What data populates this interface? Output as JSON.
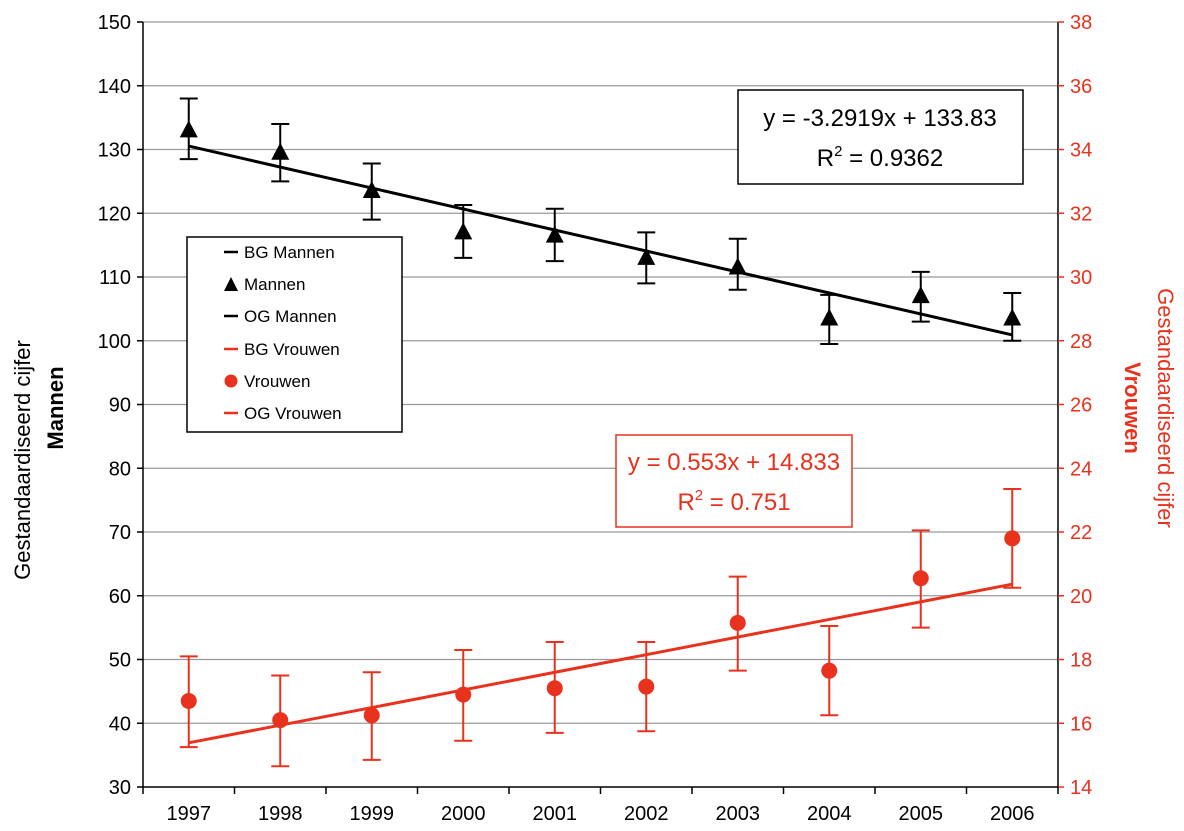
{
  "colors": {
    "men": "#000000",
    "women": "#e8321e",
    "grid": "#9a9a9a",
    "axis": "#000000"
  },
  "chart_data": {
    "type": "scatter",
    "x": [
      "1997",
      "1998",
      "1999",
      "2000",
      "2001",
      "2002",
      "2003",
      "2004",
      "2005",
      "2006"
    ],
    "left_axis": {
      "label_line1": "Gestandaardiseerd cijfer",
      "label_line2": "Mannen",
      "ylim": [
        30,
        150
      ],
      "ticks": [
        30,
        40,
        50,
        60,
        70,
        80,
        90,
        100,
        110,
        120,
        130,
        140,
        150
      ]
    },
    "right_axis": {
      "label_line1": "Gestandaardiseerd cijfer",
      "label_line2": "Vrouwen",
      "ylim": [
        14,
        38
      ],
      "ticks": [
        14,
        16,
        18,
        20,
        22,
        24,
        26,
        28,
        30,
        32,
        34,
        36,
        38
      ]
    },
    "grid": true,
    "legend": {
      "placement": "upper-left",
      "entries": [
        "BG Mannen",
        "Mannen",
        "OG Mannen",
        "BG Vrouwen",
        "Vrouwen",
        "OG Vrouwen"
      ]
    },
    "series": [
      {
        "name": "Mannen",
        "axis": "left",
        "marker": "triangle",
        "values": [
          133,
          129.5,
          123.5,
          117,
          116.5,
          113,
          111.5,
          103.5,
          107,
          103.5
        ],
        "lower": [
          128.5,
          125,
          119,
          113,
          112.5,
          109,
          108,
          99.5,
          103,
          100
        ],
        "upper": [
          138,
          134,
          127.8,
          121.3,
          120.7,
          117,
          116,
          107.2,
          110.8,
          107.5
        ]
      },
      {
        "name": "Vrouwen",
        "axis": "right",
        "marker": "circle",
        "values": [
          16.7,
          16.1,
          16.25,
          16.9,
          17.1,
          17.15,
          19.15,
          17.65,
          20.55,
          21.8
        ],
        "lower": [
          15.25,
          14.65,
          14.85,
          15.45,
          15.7,
          15.75,
          17.65,
          16.25,
          19.0,
          20.25
        ],
        "upper": [
          18.1,
          17.5,
          17.6,
          18.3,
          18.55,
          18.55,
          20.6,
          19.05,
          22.05,
          23.35
        ]
      }
    ],
    "trendlines": [
      {
        "series": "Mannen",
        "slope": -3.2919,
        "intercept": 133.83,
        "equation": "y = -3.2919x + 133.83",
        "r2_prefix": "R",
        "r2_sup": "2",
        "r2_value": " = 0.9362"
      },
      {
        "series": "Vrouwen",
        "slope": 0.553,
        "intercept": 14.833,
        "equation": "y = 0.553x + 14.833",
        "r2_prefix": "R",
        "r2_sup": "2",
        "r2_value": " = 0.751"
      }
    ]
  }
}
